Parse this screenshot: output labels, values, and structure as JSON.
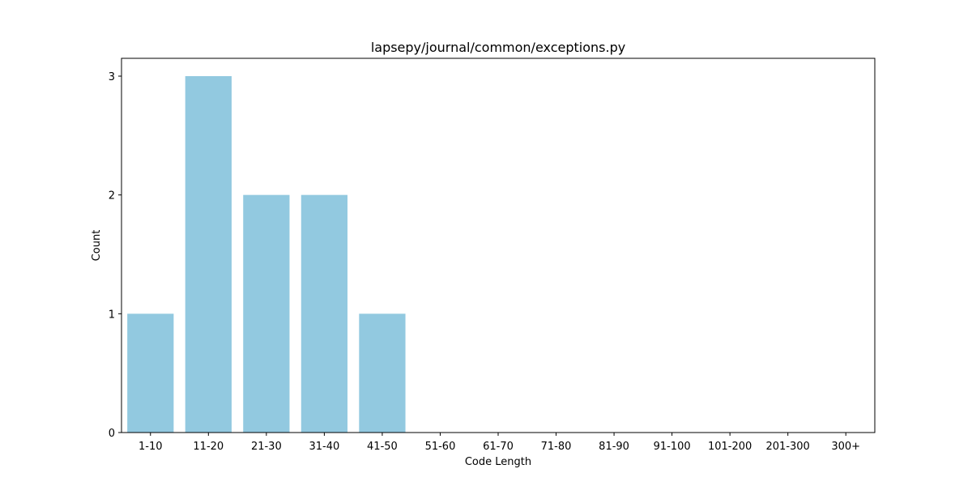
{
  "chart_data": {
    "type": "bar",
    "title": "lapsepy/journal/common/exceptions.py",
    "xlabel": "Code Length",
    "ylabel": "Count",
    "categories": [
      "1-10",
      "11-20",
      "21-30",
      "31-40",
      "41-50",
      "51-60",
      "61-70",
      "71-80",
      "81-90",
      "91-100",
      "101-200",
      "201-300",
      "300+"
    ],
    "values": [
      1,
      3,
      2,
      2,
      1,
      0,
      0,
      0,
      0,
      0,
      0,
      0,
      0
    ],
    "yticks": [
      "0",
      "1",
      "2",
      "3"
    ],
    "ylim": [
      0,
      3.15
    ],
    "grid": false,
    "legend": "none",
    "bar_color": "#92c9e0"
  }
}
